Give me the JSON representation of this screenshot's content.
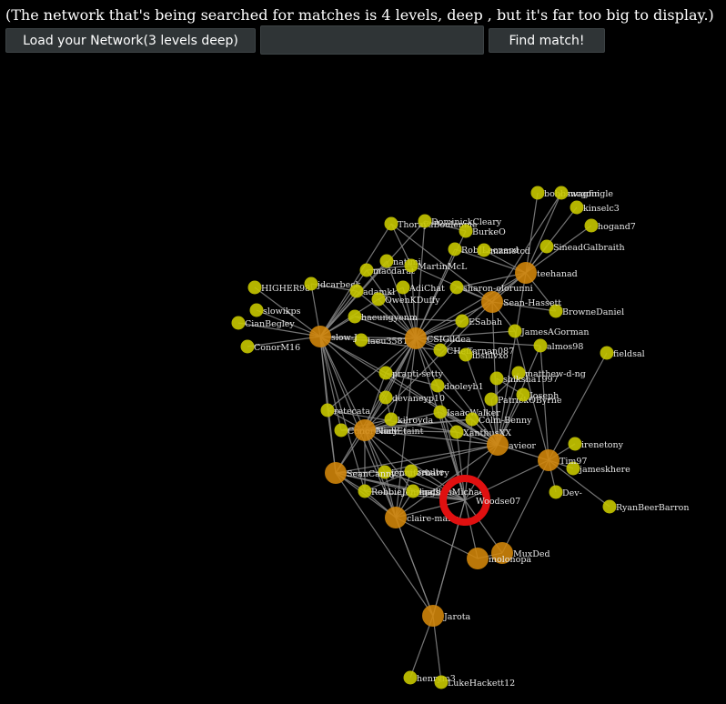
{
  "header": {
    "notice": "(The network that's being searched for matches is 4 levels, deep , but it's far too big to display.)"
  },
  "controls": {
    "load_label": "Load your Network(3 levels deep)",
    "search_value": "",
    "find_label": "Find match!"
  },
  "colors": {
    "background": "#000000",
    "node_small": "#c8c800",
    "node_large": "#d4880a",
    "highlight_ring": "#e01010",
    "edge": "#888888"
  },
  "nodes": [
    {
      "id": "teehanad",
      "label": "teehanad",
      "type": "large"
    },
    {
      "id": "Sean-Hassett",
      "label": "Sean-Hassett",
      "type": "large"
    },
    {
      "id": "slow-J",
      "label": "slow-J",
      "type": "large"
    },
    {
      "id": "CSIGildea",
      "label": "CSIGildea",
      "type": "large"
    },
    {
      "id": "NiallEtaint",
      "label": "NiallEtaint",
      "type": "large"
    },
    {
      "id": "avieor",
      "label": "avieor",
      "type": "large"
    },
    {
      "id": "Tim97",
      "label": "Tim97",
      "type": "large"
    },
    {
      "id": "SeanCanny",
      "label": "SeanCanny",
      "type": "large"
    },
    {
      "id": "claire-maria",
      "label": "claire-maria",
      "type": "large"
    },
    {
      "id": "Woodse07",
      "label": "Woodse07",
      "type": "highlight"
    },
    {
      "id": "MuxDed",
      "label": "MuxDed",
      "type": "large"
    },
    {
      "id": "molonopa",
      "label": "molonopa",
      "type": "large"
    },
    {
      "id": "Jarota",
      "label": "Jarota",
      "type": "large"
    },
    {
      "id": "bobbswagfin",
      "label": "bobbswagfin",
      "type": "small"
    },
    {
      "id": "mcgonigle",
      "label": "mcgonigle",
      "type": "small"
    },
    {
      "id": "kinselc3",
      "label": "kinselc3",
      "type": "small"
    },
    {
      "id": "hogand7",
      "label": "hogand7",
      "type": "small"
    },
    {
      "id": "SineadGalbraith",
      "label": "SineadGalbraith",
      "type": "small"
    },
    {
      "id": "ThorayaBoulenme",
      "label": "ThorayaBoulenme",
      "type": "small"
    },
    {
      "id": "DominickCleary",
      "label": "DominickCleary",
      "type": "small"
    },
    {
      "id": "BurkeO",
      "label": "BurkeO",
      "type": "small"
    },
    {
      "id": "RobJLeonard",
      "label": "RobJLeonard",
      "type": "small"
    },
    {
      "id": "mzmetcd",
      "label": "mzmetcd",
      "type": "small"
    },
    {
      "id": "natimi",
      "label": "natimi",
      "type": "small"
    },
    {
      "id": "macdarat",
      "label": "macdarat",
      "type": "small"
    },
    {
      "id": "MartinMcL",
      "label": "MartinMcL",
      "type": "small"
    },
    {
      "id": "HIGHER98",
      "label": "HIGHER98",
      "type": "small"
    },
    {
      "id": "jdcarbeck",
      "label": "jdcarbeck",
      "type": "small"
    },
    {
      "id": "adamkl",
      "label": "adamkl",
      "type": "small"
    },
    {
      "id": "AdiChat",
      "label": "AdiChat",
      "type": "small"
    },
    {
      "id": "sharon-olorunni",
      "label": "sharon-olorunni",
      "type": "small"
    },
    {
      "id": "OwenKDuffy",
      "label": "OwenKDuffy",
      "type": "small"
    },
    {
      "id": "slowikps",
      "label": "slowikps",
      "type": "small"
    },
    {
      "id": "CianBegley",
      "label": "CianBegley",
      "type": "small"
    },
    {
      "id": "haeungyenm",
      "label": "haeungyenm",
      "type": "small"
    },
    {
      "id": "BrowneDaniel",
      "label": "BrowneDaniel",
      "type": "small"
    },
    {
      "id": "ESabah",
      "label": "ESabah",
      "type": "small"
    },
    {
      "id": "JamesAGorman",
      "label": "JamesAGorman",
      "type": "small"
    },
    {
      "id": "ConorM16",
      "label": "ConorM16",
      "type": "small"
    },
    {
      "id": "laeu3581",
      "label": "laeu3581",
      "type": "small"
    },
    {
      "id": "CHeffernan087",
      "label": "CHeffernan087",
      "type": "small"
    },
    {
      "id": "almos98",
      "label": "almos98",
      "type": "small"
    },
    {
      "id": "ibshlvxo",
      "label": "ibshlvxo",
      "type": "small"
    },
    {
      "id": "fieldsal",
      "label": "fieldsal",
      "type": "small"
    },
    {
      "id": "prapti-setty",
      "label": "prapti-setty",
      "type": "small"
    },
    {
      "id": "matthew-d-ng",
      "label": "matthew-d-ng",
      "type": "small"
    },
    {
      "id": "shiksha1997",
      "label": "shiksha1997",
      "type": "small"
    },
    {
      "id": "dooleyb1",
      "label": "dooleyb1",
      "type": "small"
    },
    {
      "id": "devaneyp10",
      "label": "devaneyp10",
      "type": "small"
    },
    {
      "id": "PatrickOByrne",
      "label": "PatrickOByrne",
      "type": "small"
    },
    {
      "id": "Joseph",
      "label": "Joseph",
      "type": "small"
    },
    {
      "id": "retecata",
      "label": "retecata",
      "type": "small"
    },
    {
      "id": "IsaacWalker",
      "label": "IsaacWalker",
      "type": "small"
    },
    {
      "id": "kilroyda",
      "label": "kilroyda",
      "type": "small"
    },
    {
      "id": "Colm-Benny",
      "label": "Colm-Benny",
      "type": "small"
    },
    {
      "id": "ConorClery",
      "label": "ConorClery",
      "type": "small"
    },
    {
      "id": "XanthusXX",
      "label": "XanthusXX",
      "type": "small"
    },
    {
      "id": "irenetony",
      "label": "irenetony",
      "type": "small"
    },
    {
      "id": "jameskhere",
      "label": "jameskhere",
      "type": "small"
    },
    {
      "id": "jenniferbarry",
      "label": "jenniferbarry",
      "type": "small"
    },
    {
      "id": "saulte",
      "label": "saulte",
      "type": "small"
    },
    {
      "id": "Dev-",
      "label": "Dev-",
      "type": "small"
    },
    {
      "id": "RobbieJennings",
      "label": "RobbieJennings",
      "type": "small"
    },
    {
      "id": "lgalllenMichael",
      "label": "lgalllenMichael",
      "type": "small"
    },
    {
      "id": "RyanBeerBarron",
      "label": "RyanBeerBarron",
      "type": "small"
    },
    {
      "id": "henrym3",
      "label": "henrym3",
      "type": "small"
    },
    {
      "id": "LukeHackett12",
      "label": "LukeHackett12",
      "type": "small"
    }
  ]
}
